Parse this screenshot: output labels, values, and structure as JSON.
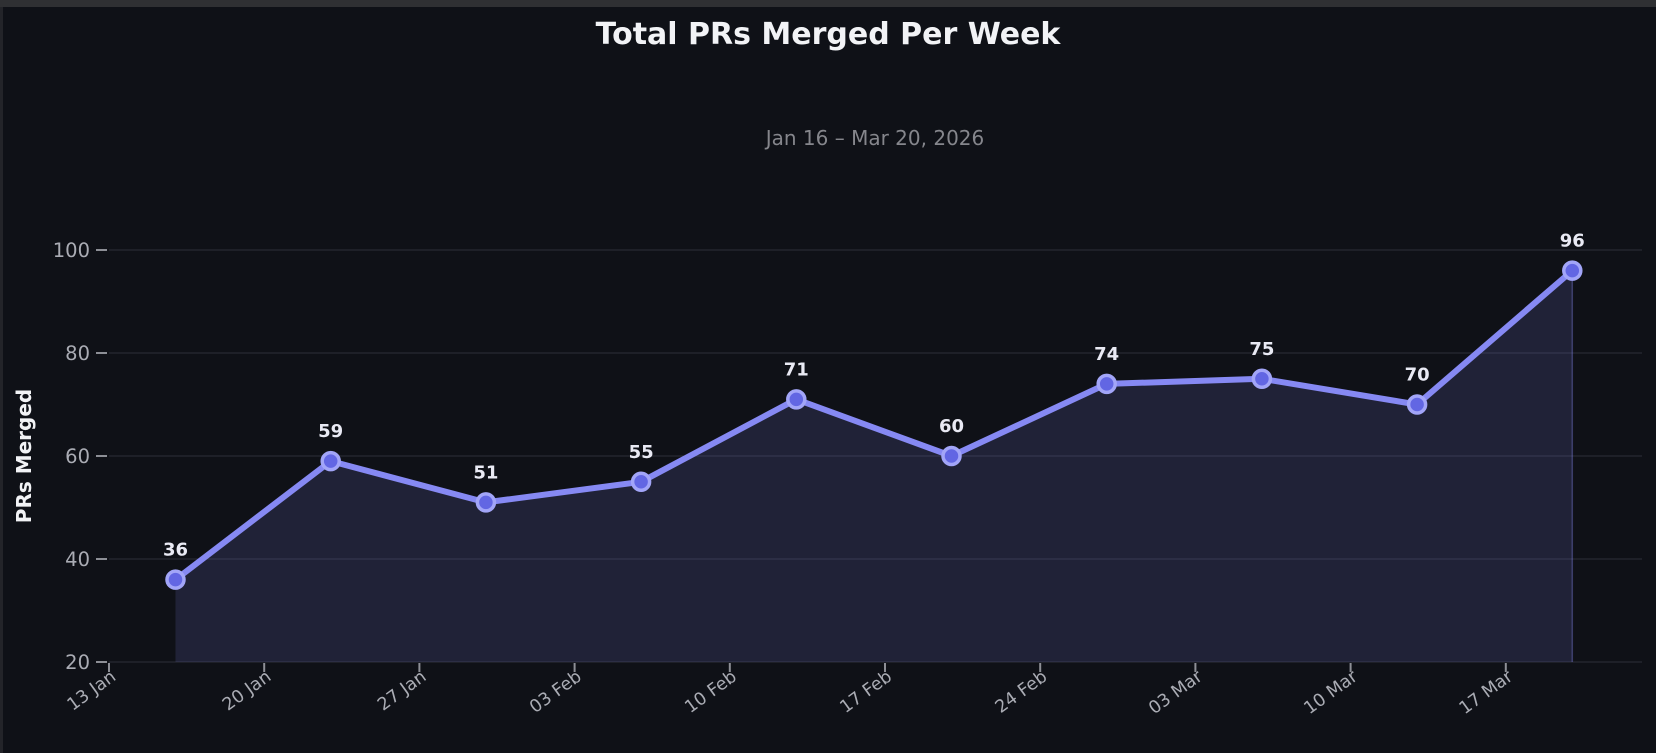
{
  "chart_data": {
    "type": "line",
    "title": "Total PRs Merged Per Week",
    "subtitle": "Jan 16 – Mar 20, 2026",
    "ylabel": "PRs Merged",
    "xlabel": "",
    "x_tick_labels": [
      "13 Jan",
      "20 Jan",
      "27 Jan",
      "03 Feb",
      "10 Feb",
      "17 Feb",
      "24 Feb",
      "03 Mar",
      "10 Mar",
      "17 Mar"
    ],
    "y_tick_labels": [
      "20",
      "40",
      "60",
      "80",
      "100"
    ],
    "y_ticks": [
      20,
      40,
      60,
      80,
      100
    ],
    "series": [
      {
        "name": "PRs Merged",
        "values": [
          36,
          59,
          51,
          55,
          71,
          60,
          74,
          75,
          70,
          96
        ],
        "point_labels": [
          "36",
          "59",
          "51",
          "55",
          "71",
          "60",
          "74",
          "75",
          "70",
          "96"
        ]
      }
    ],
    "ylim": [
      20,
      107
    ],
    "grid": "horizontal",
    "legend": "none",
    "marker": "circle",
    "area_fill": true,
    "colors": {
      "background": "#0f1117",
      "line": "#8689f3",
      "point_fill": "#6266e3",
      "point_ring": "#a2a5f8",
      "area": "rgba(134,137,243,0.15)",
      "area_edge": "rgba(134,137,243,0.35)",
      "gridline": "#2c2e38",
      "tick_mark": "#8d8f96",
      "tick_label": "#aaacb4",
      "subtitle": "#85868c",
      "title": "#f2f3f6",
      "value_label": "#e9eaf4",
      "ylabel": "#f2f3f6"
    }
  }
}
